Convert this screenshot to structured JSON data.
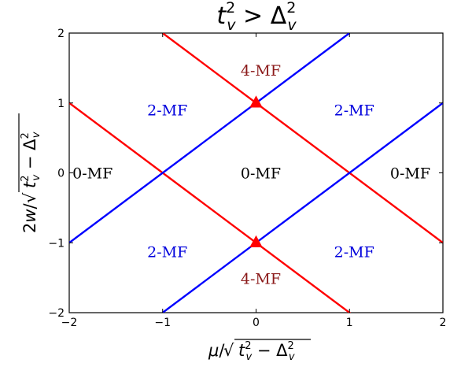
{
  "chart_data": {
    "type": "line",
    "title": "t_v^2 > Δ_v^2",
    "title_parts": {
      "base": "t",
      "sup1": "2",
      "sub1": "v",
      "rel": " > Δ",
      "sup2": "2",
      "sub2": "v"
    },
    "xlabel": "μ/√(t_v² − Δ_v²)",
    "ylabel": "2w/√(t_v² − Δ_v²)",
    "xlim": [
      -2,
      2
    ],
    "ylim": [
      -2,
      2
    ],
    "xticks": [
      -2,
      -1,
      0,
      1,
      2
    ],
    "yticks": [
      -2,
      -1,
      0,
      1,
      2
    ],
    "xtick_labels": [
      "−2",
      "−1",
      "0",
      "1",
      "2"
    ],
    "ytick_labels": [
      "−2",
      "−1",
      "0",
      "1",
      "2"
    ],
    "grid": false,
    "lines": [
      {
        "color": "#ff0000",
        "x": [
          -2,
          2
        ],
        "y": [
          1,
          -3
        ]
      },
      {
        "color": "#ff0000",
        "x": [
          -1,
          2
        ],
        "y": [
          2,
          -1
        ]
      },
      {
        "color": "#0000ff",
        "x": [
          -2,
          1
        ],
        "y": [
          -1,
          2
        ]
      },
      {
        "color": "#0000ff",
        "x": [
          -1,
          2
        ],
        "y": [
          -2,
          1
        ]
      }
    ],
    "markers": [
      {
        "x": 0,
        "y": 1,
        "color": "#ff0000",
        "shape": "triangle-up"
      },
      {
        "x": 0,
        "y": -1,
        "color": "#ff0000",
        "shape": "triangle-up"
      }
    ],
    "annotations": [
      {
        "text": "4-MF",
        "x": 0.05,
        "y": 1.45,
        "color": "#8b1a1a"
      },
      {
        "text": "2-MF",
        "x": -0.95,
        "y": 0.88,
        "color": "#0000dd"
      },
      {
        "text": "2-MF",
        "x": 1.05,
        "y": 0.88,
        "color": "#0000dd"
      },
      {
        "text": "0-MF",
        "x": -1.75,
        "y": -0.02,
        "color": "#000000"
      },
      {
        "text": "0-MF",
        "x": 0.05,
        "y": -0.02,
        "color": "#000000"
      },
      {
        "text": "0-MF",
        "x": 1.65,
        "y": -0.02,
        "color": "#000000"
      },
      {
        "text": "2-MF",
        "x": -0.95,
        "y": -1.15,
        "color": "#0000dd"
      },
      {
        "text": "2-MF",
        "x": 1.05,
        "y": -1.15,
        "color": "#0000dd"
      },
      {
        "text": "4-MF",
        "x": 0.05,
        "y": -1.53,
        "color": "#8b1a1a"
      }
    ]
  }
}
